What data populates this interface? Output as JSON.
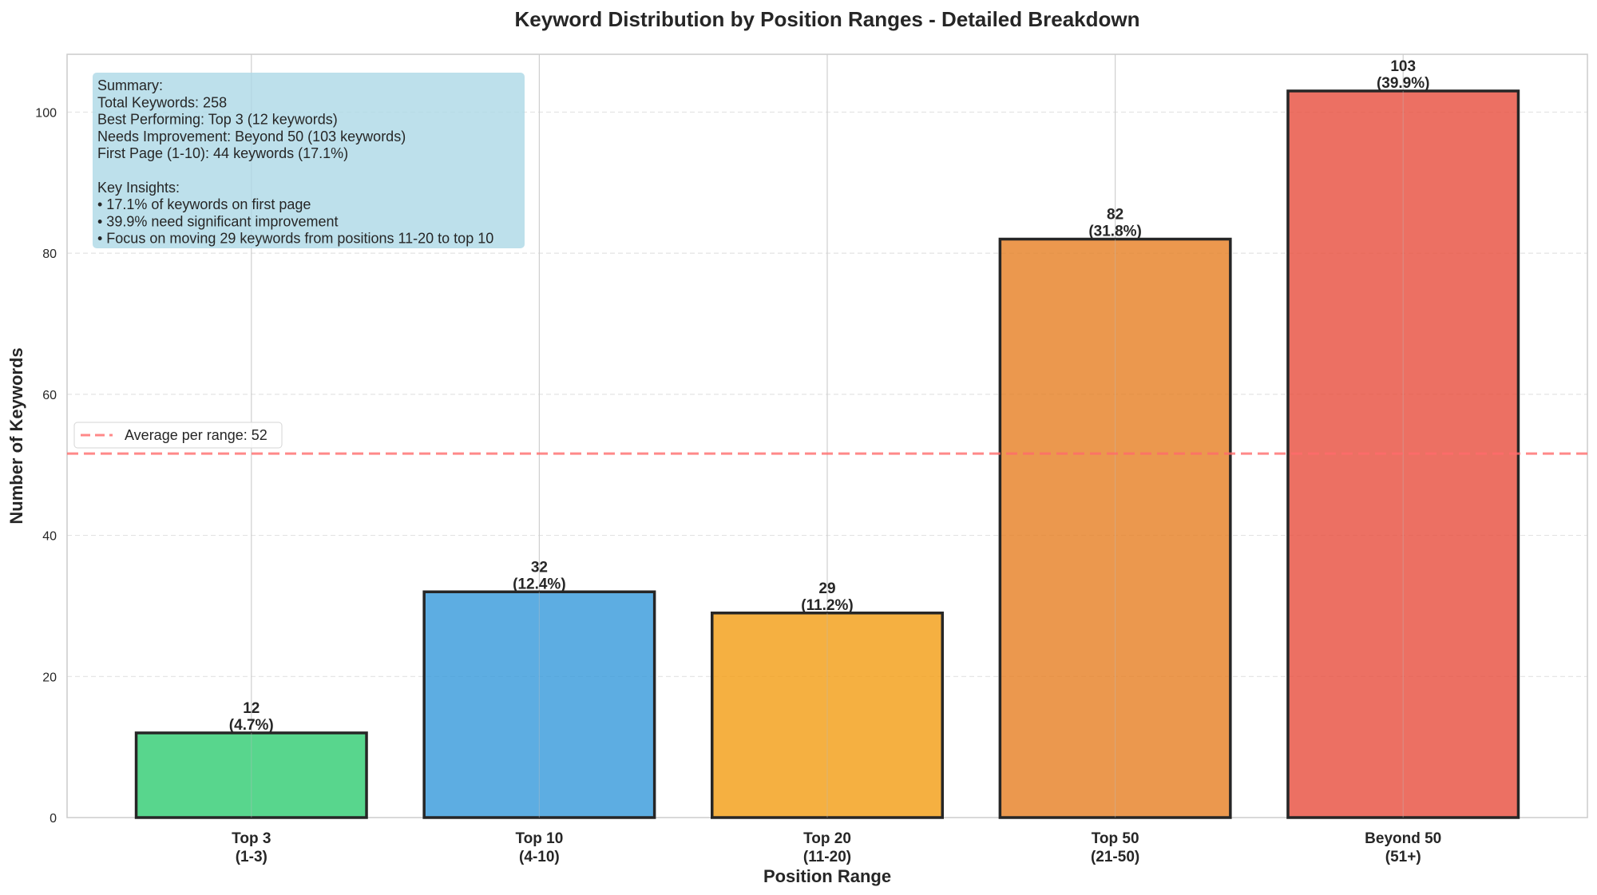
{
  "chart_data": {
    "type": "bar",
    "title": "Keyword Distribution by Position Ranges - Detailed Breakdown",
    "xlabel": "Position Range",
    "ylabel": "Number of Keywords",
    "categories": [
      "Top 3\n(1-3)",
      "Top 10\n(4-10)",
      "Top 20\n(11-20)",
      "Top 50\n(21-50)",
      "Beyond 50\n(51+)"
    ],
    "category_lines": [
      [
        "Top 3",
        "(1-3)"
      ],
      [
        "Top 10",
        "(4-10)"
      ],
      [
        "Top 20",
        "(11-20)"
      ],
      [
        "Top 50",
        "(21-50)"
      ],
      [
        "Beyond 50",
        "(51+)"
      ]
    ],
    "values": [
      12,
      32,
      29,
      82,
      103
    ],
    "percent_labels": [
      "(4.7%)",
      "(12.4%)",
      "(11.2%)",
      "(31.8%)",
      "(39.9%)"
    ],
    "colors": [
      "#2ecc71",
      "#3498db",
      "#f39c12",
      "#e67e22",
      "#e74c3c"
    ],
    "bar_opacity": 0.8,
    "bar_edge_color": "#262626",
    "ylim": [
      0,
      108.2
    ],
    "xlim": [
      -0.64,
      4.64
    ],
    "yticks": [
      0,
      20,
      40,
      60,
      80,
      100
    ],
    "grid": true,
    "average_line": {
      "value": 51.6,
      "label": "Average per range: 52",
      "color": "#ff6b6b",
      "style": "dashed"
    },
    "legend_placement": "center-left",
    "summary_box": {
      "lines": [
        "Summary:",
        "Total Keywords: 258",
        "Best Performing: Top 3 (12 keywords)",
        "Needs Improvement: Beyond 50 (103 keywords)",
        "First Page (1-10): 44 keywords (17.1%)",
        "",
        "Key Insights:",
        "• 17.1% of keywords on first page",
        "• 39.9% need significant improvement",
        "• Focus on moving 29 keywords from positions 11-20 to top 10"
      ],
      "background": "#add8e6"
    }
  }
}
